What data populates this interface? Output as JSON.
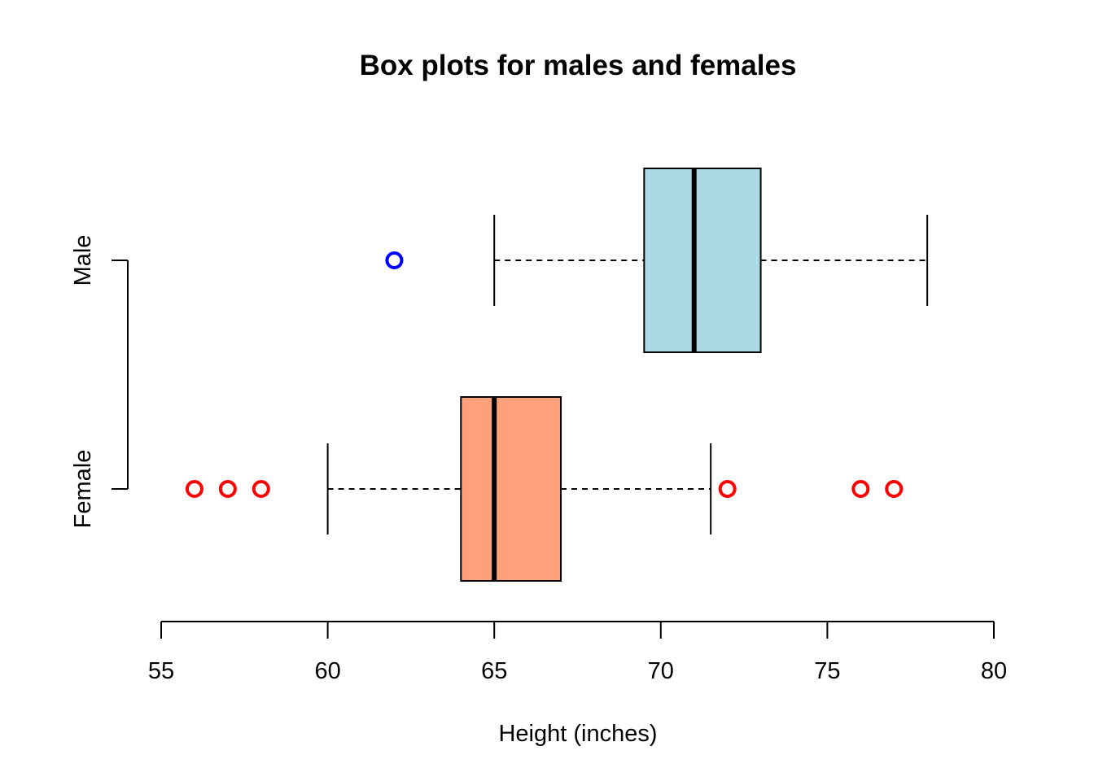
{
  "chart_data": {
    "type": "box",
    "orientation": "horizontal",
    "title": "Box plots for males and females",
    "xlabel": "Height (inches)",
    "ylabel": "",
    "xlim": [
      55,
      80
    ],
    "xticks": [
      55,
      60,
      65,
      70,
      75,
      80
    ],
    "grid": false,
    "groups": [
      {
        "name": "Female",
        "fill": "#ffa07a",
        "outlier_color": "#ff0000",
        "whisker_low": 60,
        "q1": 64,
        "median": 65,
        "q3": 67,
        "whisker_high": 71.5,
        "outliers": [
          56,
          57,
          58,
          72,
          76,
          77
        ]
      },
      {
        "name": "Male",
        "fill": "#add8e6",
        "outlier_color": "#0000ff",
        "whisker_low": 65,
        "q1": 69.5,
        "median": 71,
        "q3": 73,
        "whisker_high": 78,
        "outliers": [
          62
        ]
      }
    ]
  }
}
